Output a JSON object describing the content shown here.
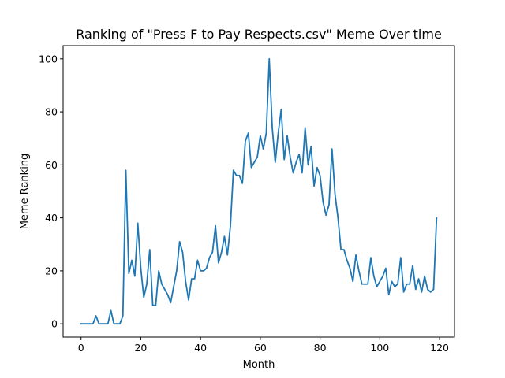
{
  "chart_data": {
    "type": "line",
    "title": "Ranking of \"Press F to Pay Respects.csv\" Meme Over time",
    "xlabel": "Month",
    "ylabel": "Meme Ranking",
    "xlim": [
      -6,
      125
    ],
    "ylim": [
      -5,
      105
    ],
    "xticks": [
      0,
      20,
      40,
      60,
      80,
      100,
      120
    ],
    "yticks": [
      0,
      20,
      40,
      60,
      80,
      100
    ],
    "grid": false,
    "legend": "none",
    "series": [
      {
        "color": "#1f77b4",
        "x": [
          0,
          1,
          2,
          3,
          4,
          5,
          6,
          7,
          8,
          9,
          10,
          11,
          12,
          13,
          14,
          15,
          16,
          17,
          18,
          19,
          20,
          21,
          22,
          23,
          24,
          25,
          26,
          27,
          28,
          29,
          30,
          31,
          32,
          33,
          34,
          35,
          36,
          37,
          38,
          39,
          40,
          41,
          42,
          43,
          44,
          45,
          46,
          47,
          48,
          49,
          50,
          51,
          52,
          53,
          54,
          55,
          56,
          57,
          58,
          59,
          60,
          61,
          62,
          63,
          64,
          65,
          66,
          67,
          68,
          69,
          70,
          71,
          72,
          73,
          74,
          75,
          76,
          77,
          78,
          79,
          80,
          81,
          82,
          83,
          84,
          85,
          86,
          87,
          88,
          89,
          90,
          91,
          92,
          93,
          94,
          95,
          96,
          97,
          98,
          99,
          100,
          101,
          102,
          103,
          104,
          105,
          106,
          107,
          108,
          109,
          110,
          111,
          112,
          113,
          114,
          115,
          116,
          117,
          118,
          119
        ],
        "y": [
          0,
          0,
          0,
          0,
          0,
          3,
          0,
          0,
          0,
          0,
          5,
          0,
          0,
          0,
          3,
          58,
          19,
          24,
          18,
          38,
          21,
          10,
          15,
          28,
          7,
          7,
          20,
          15,
          13,
          11,
          8,
          14,
          20,
          31,
          27,
          16,
          9,
          17,
          17,
          24,
          20,
          20,
          21,
          25,
          27,
          37,
          23,
          27,
          33,
          26,
          37,
          58,
          56,
          56,
          53,
          69,
          72,
          59,
          61,
          63,
          71,
          66,
          72,
          100,
          74,
          61,
          72,
          81,
          62,
          71,
          63,
          57,
          61,
          64,
          57,
          74,
          60,
          67,
          52,
          59,
          56,
          46,
          41,
          45,
          66,
          49,
          40,
          28,
          28,
          24,
          21,
          16,
          26,
          20,
          15,
          15,
          15,
          25,
          18,
          14,
          16,
          18,
          21,
          11,
          16,
          14,
          15,
          25,
          12,
          15,
          15,
          22,
          13,
          17,
          12,
          18,
          13,
          12,
          13,
          40
        ]
      }
    ]
  }
}
